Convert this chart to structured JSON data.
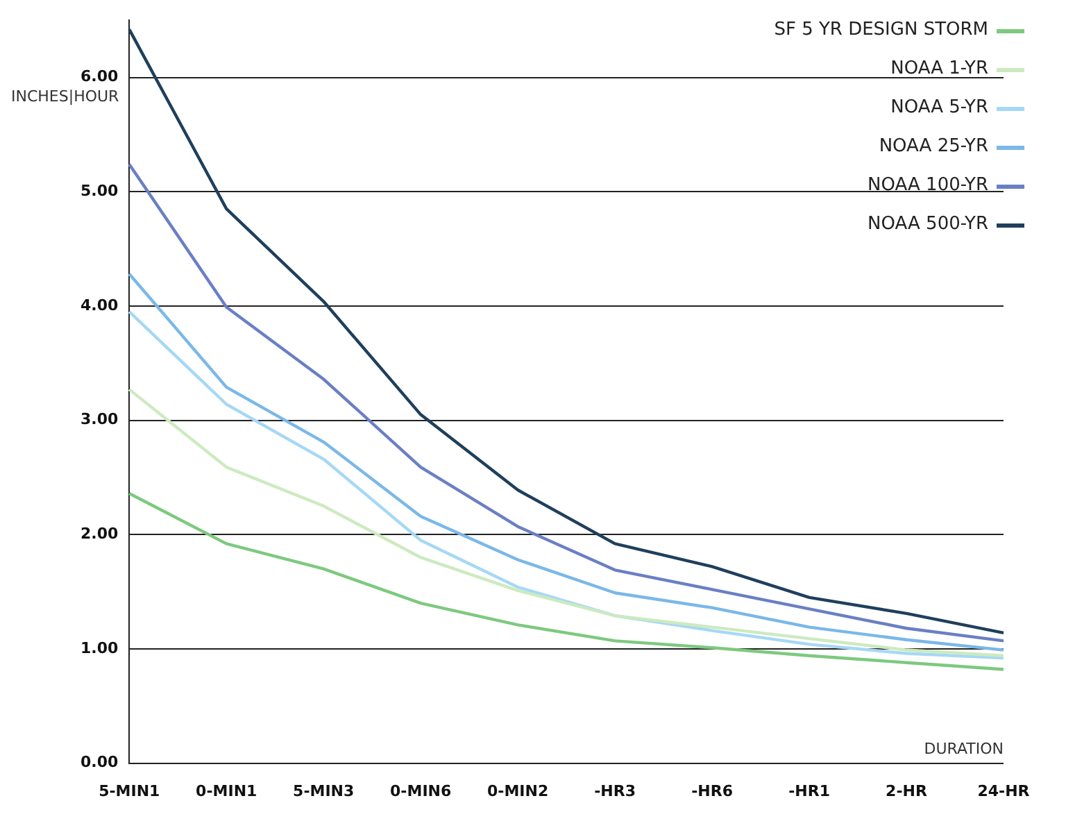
{
  "chart_data": {
    "type": "line",
    "xlabel": "DURATION",
    "ylabel": "INCHES|HOUR",
    "categories": [
      "5-MIN1",
      "0-MIN1",
      "5-MIN3",
      "0-MIN6",
      "0-MIN2",
      "-HR3",
      "-HR6",
      "-HR1",
      "2-HR",
      "24-HR"
    ],
    "series": [
      {
        "name": "SF 5 YR DESIGN STORM",
        "color": "#7dc97f",
        "values": [
          2.36,
          1.92,
          1.7,
          1.4,
          1.21,
          1.07,
          1.01,
          0.94,
          0.88,
          0.82
        ]
      },
      {
        "name": "NOAA 1-YR",
        "color": "#cdeac0",
        "values": [
          3.27,
          2.59,
          2.25,
          1.8,
          1.51,
          1.29,
          1.19,
          1.09,
          0.99,
          0.94
        ]
      },
      {
        "name": "NOAA 5-YR",
        "color": "#a6d8f5",
        "values": [
          3.95,
          3.14,
          2.66,
          1.95,
          1.54,
          1.29,
          1.16,
          1.04,
          0.96,
          0.92
        ]
      },
      {
        "name": "NOAA 25-YR",
        "color": "#7ab8e8",
        "values": [
          4.28,
          3.29,
          2.81,
          2.16,
          1.78,
          1.49,
          1.36,
          1.19,
          1.08,
          0.99
        ]
      },
      {
        "name": "NOAA 100-YR",
        "color": "#6a7fc4",
        "values": [
          5.24,
          3.99,
          3.36,
          2.59,
          2.07,
          1.69,
          1.52,
          1.35,
          1.18,
          1.07
        ]
      },
      {
        "name": "NOAA 500-YR",
        "color": "#1f3f5c",
        "values": [
          6.42,
          4.85,
          4.04,
          3.05,
          2.39,
          1.92,
          1.72,
          1.45,
          1.31,
          1.14
        ]
      }
    ],
    "ylim": [
      0,
      6.5
    ],
    "yticks": [
      {
        "value": 0,
        "label": "0.00"
      },
      {
        "value": 1,
        "label": "1.00"
      },
      {
        "value": 2,
        "label": "2.00"
      },
      {
        "value": 3,
        "label": "3.00"
      },
      {
        "value": 4,
        "label": "4.00"
      },
      {
        "value": 5,
        "label": "5.00"
      },
      {
        "value": 6,
        "label": "6.00"
      }
    ],
    "grid": "y",
    "legend": "top right",
    "marker": "none",
    "line_style": "solid"
  }
}
